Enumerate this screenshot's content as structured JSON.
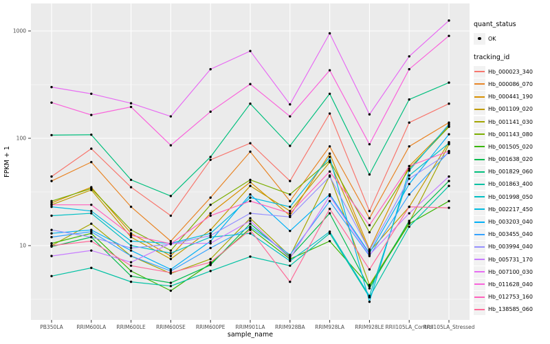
{
  "style": {
    "panel_bg": "#EBEBEB",
    "grid_color": "#FFFFFF",
    "tick_text_color": "#4D4D4D",
    "title_text_color": "#000000",
    "point_color": "#000000",
    "legend_key_bg": "#F2F2F2"
  },
  "legend": {
    "quant_status_title": "quant_status",
    "quant_status_items": [
      {
        "label": "OK",
        "marker": "black-point"
      }
    ],
    "tracking_title": "tracking_id"
  },
  "chart_data": {
    "type": "line",
    "title": "",
    "xlabel": "sample_name",
    "ylabel": "FPKM + 1",
    "y_scale": "log10",
    "ylim": [
      2,
      1700
    ],
    "y_ticks": [
      10,
      100,
      1000
    ],
    "y_minor_ticks": [
      3.162,
      31.62,
      316.2
    ],
    "grid": "on",
    "legend_position": "right",
    "categories": [
      "PB350LA",
      "RRIM600LA",
      "RRIM600LE",
      "RRIM600SE",
      "RRIM600PE",
      "RRIM901LA",
      "RRIM928BA",
      "RRIM928LA",
      "RRIM928LE",
      "RRII105LA_Control",
      "RRII105LA_Stressed"
    ],
    "series": [
      {
        "name": "Hb_000023_340",
        "color": "#F8766D",
        "values": [
          44,
          80,
          35,
          19,
          63,
          90,
          40,
          170,
          21,
          140,
          210
        ]
      },
      {
        "name": "Hb_000086_070",
        "color": "#E88526",
        "values": [
          40,
          60,
          23,
          11,
          28,
          75,
          26,
          84,
          18,
          84,
          140
        ]
      },
      {
        "name": "Hb_000441_190",
        "color": "#D89000",
        "values": [
          25,
          35,
          13,
          8,
          20,
          39,
          19,
          72,
          9.2,
          55,
          130
        ]
      },
      {
        "name": "Hb_001109_020",
        "color": "#C09B00",
        "values": [
          24,
          33,
          12,
          7.5,
          14,
          36,
          21,
          60,
          8.8,
          23,
          92
        ]
      },
      {
        "name": "Hb_001141_030",
        "color": "#A3A500",
        "values": [
          10,
          16,
          8,
          5.5,
          7.5,
          18,
          8,
          45,
          4.3,
          16.5,
          88
        ]
      },
      {
        "name": "Hb_001143_080",
        "color": "#7CAE00",
        "values": [
          26,
          34,
          14,
          9,
          24,
          41,
          30,
          62,
          13.3,
          52,
          128
        ]
      },
      {
        "name": "Hb_001505_020",
        "color": "#39B600",
        "values": [
          10.5,
          13,
          5.8,
          3.8,
          6.8,
          14.5,
          7.5,
          11,
          4.2,
          16,
          26
        ]
      },
      {
        "name": "Hb_001638_020",
        "color": "#00BB4E",
        "values": [
          9.8,
          12,
          5.2,
          4.5,
          6.6,
          16,
          7.8,
          20,
          4.0,
          17,
          40
        ]
      },
      {
        "name": "Hb_001829_060",
        "color": "#00BF7D",
        "values": [
          107,
          108,
          41,
          29,
          67,
          210,
          85,
          260,
          46,
          230,
          330
        ]
      },
      {
        "name": "Hb_001863_400",
        "color": "#00C1A3",
        "values": [
          5.2,
          6.2,
          4.6,
          4.2,
          5.8,
          7.9,
          6.5,
          13,
          3.3,
          15,
          36
        ]
      },
      {
        "name": "Hb_001998_050",
        "color": "#00BFC4",
        "values": [
          19,
          20,
          10,
          8.5,
          12,
          13,
          7.2,
          13.5,
          3.4,
          45,
          90
        ]
      },
      {
        "name": "Hb_002217_450",
        "color": "#00BAE0",
        "values": [
          23,
          21,
          11,
          10.5,
          13,
          28,
          23,
          67,
          3.0,
          50,
          135
        ]
      },
      {
        "name": "Hb_003203_040",
        "color": "#00B0F6",
        "values": [
          13,
          14,
          9,
          6,
          11,
          30,
          13.7,
          30,
          8.5,
          37.5,
          109
        ]
      },
      {
        "name": "Hb_003455_040",
        "color": "#35A2FF",
        "values": [
          12,
          13.5,
          8,
          5.8,
          9.5,
          15,
          8.2,
          26,
          8.0,
          30,
          75
        ]
      },
      {
        "name": "Hb_003994_040",
        "color": "#9590FF",
        "values": [
          14,
          12,
          9.5,
          10.3,
          12.4,
          20,
          18.5,
          44,
          9.0,
          42,
          73
        ]
      },
      {
        "name": "Hb_005731_170",
        "color": "#C77CFF",
        "values": [
          8,
          9,
          7,
          10.5,
          10.5,
          17,
          7.6,
          29,
          8.2,
          20,
          44
        ]
      },
      {
        "name": "Hb_007100_030",
        "color": "#E76BF3",
        "values": [
          300,
          260,
          212,
          160,
          440,
          650,
          207,
          950,
          167,
          580,
          1250
        ]
      },
      {
        "name": "Hb_011628_040",
        "color": "#FA62DB",
        "values": [
          215,
          165,
          196,
          86,
          177,
          320,
          160,
          430,
          88,
          440,
          900
        ]
      },
      {
        "name": "Hb_012753_160",
        "color": "#FF62BC",
        "values": [
          24,
          24,
          12.5,
          10.4,
          19,
          26,
          20,
          49,
          15.5,
          55,
          76
        ]
      },
      {
        "name": "Hb_138585_060",
        "color": "#FF6A98",
        "values": [
          10,
          11,
          6.5,
          5.6,
          7,
          14,
          4.6,
          22,
          6.0,
          23,
          22.5
        ]
      }
    ]
  }
}
